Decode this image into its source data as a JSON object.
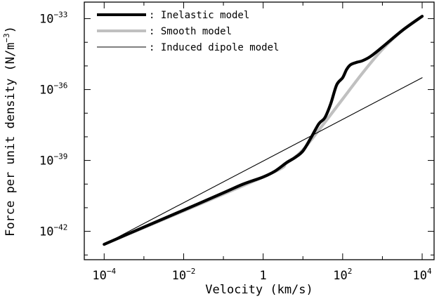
{
  "chart_data": {
    "type": "line",
    "title": "",
    "xlabel": "Velocity (km/s)",
    "ylabel_parts": [
      "Force per unit density (N/m",
      "−3",
      ")"
    ],
    "x_scale": "log",
    "y_scale": "log",
    "xlim_log10": [
      -4.5,
      4.3
    ],
    "ylim_log10": [
      -43.2,
      -32.3
    ],
    "x_ticks": [
      {
        "base": "10",
        "exp": "−4",
        "log10": -4
      },
      {
        "base": "10",
        "exp": "−2",
        "log10": -2
      },
      {
        "base": "1",
        "exp": "",
        "log10": 0
      },
      {
        "base": "10",
        "exp": "2",
        "log10": 2
      },
      {
        "base": "10",
        "exp": "4",
        "log10": 4
      }
    ],
    "y_ticks": [
      {
        "base": "10",
        "exp": "−42",
        "log10": -42
      },
      {
        "base": "10",
        "exp": "−39",
        "log10": -39
      },
      {
        "base": "10",
        "exp": "−36",
        "log10": -36
      },
      {
        "base": "10",
        "exp": "−33",
        "log10": -33
      }
    ],
    "legend_location": "top-left",
    "series": [
      {
        "name": ": Inelastic model",
        "style": "thick-black",
        "color": "#000000",
        "points_log10": [
          [
            -4,
            -42.55
          ],
          [
            -3,
            -41.82
          ],
          [
            -2,
            -41.1
          ],
          [
            -1,
            -40.37
          ],
          [
            -0.5,
            -40.0
          ],
          [
            0,
            -39.7
          ],
          [
            0.3,
            -39.45
          ],
          [
            0.6,
            -39.08
          ],
          [
            0.8,
            -38.88
          ],
          [
            1.0,
            -38.6
          ],
          [
            1.2,
            -38.05
          ],
          [
            1.4,
            -37.45
          ],
          [
            1.55,
            -37.2
          ],
          [
            1.7,
            -36.6
          ],
          [
            1.85,
            -35.8
          ],
          [
            2.0,
            -35.5
          ],
          [
            2.1,
            -35.15
          ],
          [
            2.2,
            -34.95
          ],
          [
            2.35,
            -34.85
          ],
          [
            2.5,
            -34.78
          ],
          [
            2.7,
            -34.6
          ],
          [
            3.0,
            -34.2
          ],
          [
            3.5,
            -33.5
          ],
          [
            4.0,
            -32.9
          ]
        ]
      },
      {
        "name": ": Smooth model",
        "style": "thick-gray",
        "color": "#c0c0c0",
        "points_log10": [
          [
            -4,
            -42.55
          ],
          [
            0,
            -39.7
          ],
          [
            0.6,
            -39.1
          ],
          [
            1.0,
            -38.55
          ],
          [
            1.5,
            -37.5
          ],
          [
            2.0,
            -36.4
          ],
          [
            2.5,
            -35.3
          ],
          [
            3.0,
            -34.3
          ],
          [
            3.5,
            -33.5
          ],
          [
            4.0,
            -32.9
          ]
        ]
      },
      {
        "name": ": Induced dipole model",
        "style": "thin-black",
        "color": "#000000",
        "points_log10": [
          [
            -4,
            -42.55
          ],
          [
            4,
            -35.5
          ]
        ]
      }
    ]
  }
}
